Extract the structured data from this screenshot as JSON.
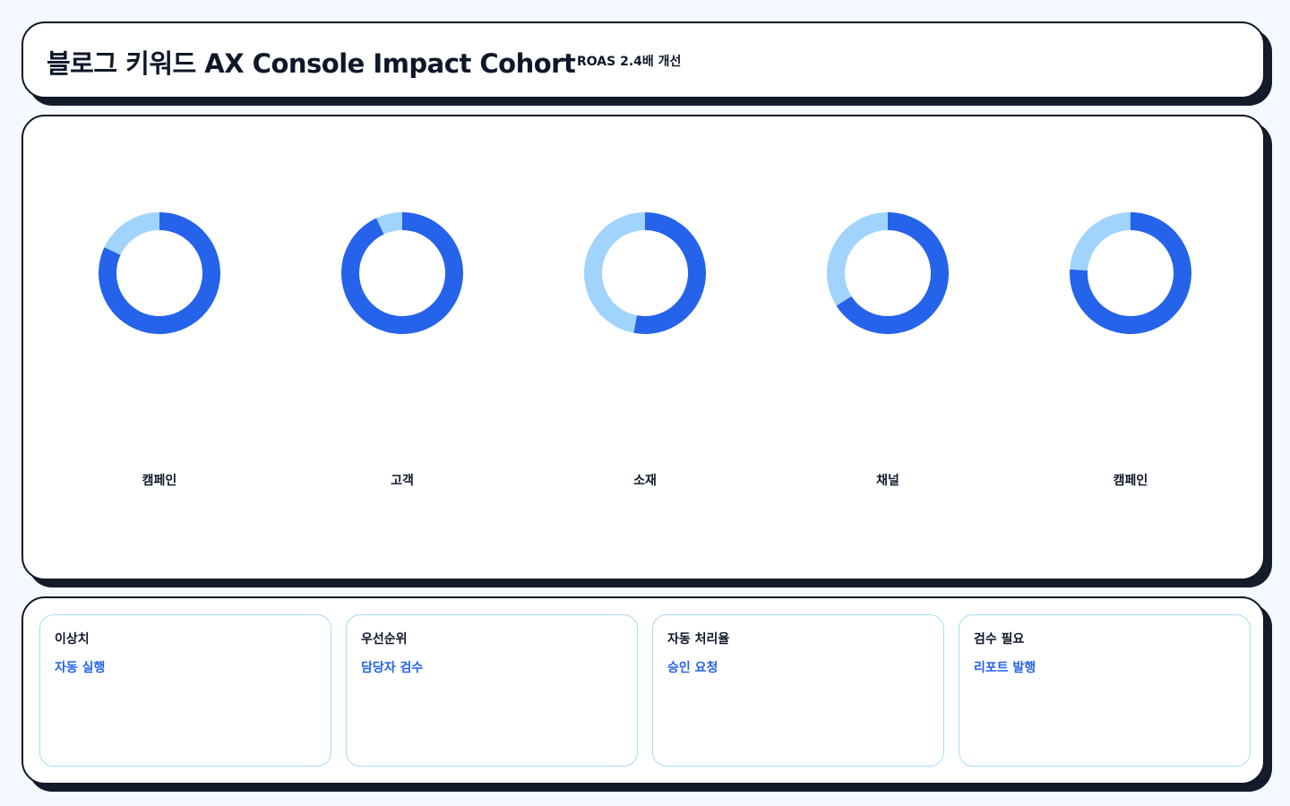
{
  "header": {
    "title": "블로그 키워드 AX Console Impact Cohort",
    "badge": "ROAS 2.4배 개선"
  },
  "chart_data": [
    {
      "type": "pie",
      "title": "캠페인",
      "values": [
        82,
        18
      ],
      "colors": [
        "#2563eb",
        "#a0d4fd"
      ]
    },
    {
      "type": "pie",
      "title": "고객",
      "values": [
        93,
        7
      ],
      "colors": [
        "#2563eb",
        "#a0d4fd"
      ]
    },
    {
      "type": "pie",
      "title": "소재",
      "values": [
        53,
        47
      ],
      "colors": [
        "#2563eb",
        "#a0d4fd"
      ]
    },
    {
      "type": "pie",
      "title": "채널",
      "values": [
        66,
        34
      ],
      "colors": [
        "#2563eb",
        "#a0d4fd"
      ]
    },
    {
      "type": "pie",
      "title": "캠페인",
      "values": [
        76,
        24
      ],
      "colors": [
        "#2563eb",
        "#a0d4fd"
      ]
    }
  ],
  "cards": [
    {
      "label": "이상치",
      "value": "자동 실행"
    },
    {
      "label": "우선순위",
      "value": "담당자 검수"
    },
    {
      "label": "자동 처리율",
      "value": "승인 요청"
    },
    {
      "label": "검수 필요",
      "value": "리포트 발행"
    }
  ]
}
